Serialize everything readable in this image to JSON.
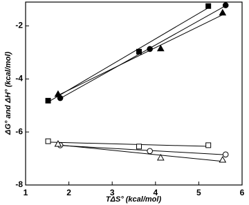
{
  "chart_data": {
    "type": "scatter",
    "xlabel": "TΔS° (kcal/mol)",
    "ylabel": "ΔG° and ΔH° (kcal/mol)",
    "xlim": [
      1,
      6
    ],
    "ylim": [
      -8,
      -1.1
    ],
    "xticks": [
      1,
      2,
      3,
      4,
      5,
      6
    ],
    "yticks": [
      -8,
      -6,
      -4,
      -2
    ],
    "fit_lines": true,
    "series": [
      {
        "marker": "square",
        "filled": true,
        "color": "#000000",
        "x": [
          1.52,
          3.62,
          5.22
        ],
        "values": [
          -4.82,
          -2.97,
          -1.25
        ]
      },
      {
        "marker": "circle",
        "filled": true,
        "color": "#000000",
        "x": [
          1.8,
          3.87,
          5.62
        ],
        "values": [
          -4.72,
          -2.87,
          -1.22
        ]
      },
      {
        "marker": "triangle",
        "filled": true,
        "color": "#000000",
        "x": [
          1.75,
          4.12,
          5.55
        ],
        "values": [
          -4.57,
          -2.85,
          -1.5
        ]
      },
      {
        "marker": "square",
        "filled": false,
        "color": "#000000",
        "x": [
          1.52,
          3.62,
          5.22
        ],
        "values": [
          -6.35,
          -6.55,
          -6.5
        ]
      },
      {
        "marker": "circle",
        "filled": false,
        "color": "#000000",
        "x": [
          1.8,
          3.87,
          5.62
        ],
        "values": [
          -6.5,
          -6.72,
          -6.85
        ]
      },
      {
        "marker": "triangle",
        "filled": false,
        "color": "#000000",
        "x": [
          1.75,
          4.12,
          5.55
        ],
        "values": [
          -6.45,
          -6.97,
          -7.05
        ]
      }
    ]
  }
}
